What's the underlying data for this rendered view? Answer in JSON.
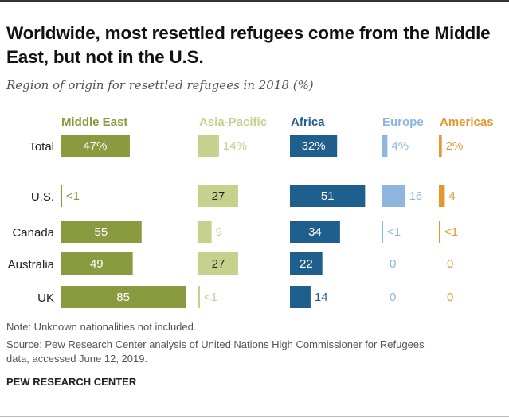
{
  "header": {
    "title": "Worldwide, most resettled refugees come from the Middle East, but not in the U.S.",
    "subtitle": "Region of origin for resettled refugees in 2018 (%)"
  },
  "notes": {
    "note": "Note: Unknown nationalities not included.",
    "source_line1": "Source: Pew Research Center analysis of United Nations High Commissioner for Refugees",
    "source_line2": "data, accessed June 12, 2019."
  },
  "footer": {
    "brand": "PEW RESEARCH CENTER"
  },
  "chart_data": {
    "type": "bar",
    "title": "Worldwide, most resettled refugees come from the Middle East, but not in the U.S.",
    "subtitle": "Region of origin for resettled refugees in 2018 (%)",
    "unit": "%",
    "categories": [
      "Total",
      "U.S.",
      "Canada",
      "Australia",
      "UK"
    ],
    "series": [
      {
        "name": "Middle East",
        "color": "#8a9a3f",
        "label_color": "#8a9a3f",
        "values": [
          47,
          0.5,
          55,
          49,
          85
        ],
        "labels": [
          "47%",
          "<1",
          "55",
          "49",
          "85"
        ]
      },
      {
        "name": "Asia-Pacific",
        "color": "#c7d18e",
        "label_color": "#c7d18e",
        "values": [
          14,
          27,
          9,
          27,
          0.5
        ],
        "labels": [
          "14%",
          "27",
          "9",
          "27",
          "<1"
        ]
      },
      {
        "name": "Africa",
        "color": "#1f5f8e",
        "label_color": "#1f5f8e",
        "values": [
          32,
          51,
          34,
          22,
          14
        ],
        "labels": [
          "32%",
          "51",
          "34",
          "22",
          "14"
        ]
      },
      {
        "name": "Europe",
        "color": "#8fb6dd",
        "label_color": "#8fb6dd",
        "values": [
          4,
          16,
          0.5,
          0,
          0
        ],
        "labels": [
          "4%",
          "16",
          "<1",
          "0",
          "0"
        ]
      },
      {
        "name": "Americas",
        "color": "#e8962f",
        "label_color": "#e8962f",
        "values": [
          2,
          4,
          0.5,
          0,
          0
        ],
        "labels": [
          "2%",
          "4",
          "<1",
          "0",
          "0"
        ]
      }
    ],
    "legend": "top"
  }
}
